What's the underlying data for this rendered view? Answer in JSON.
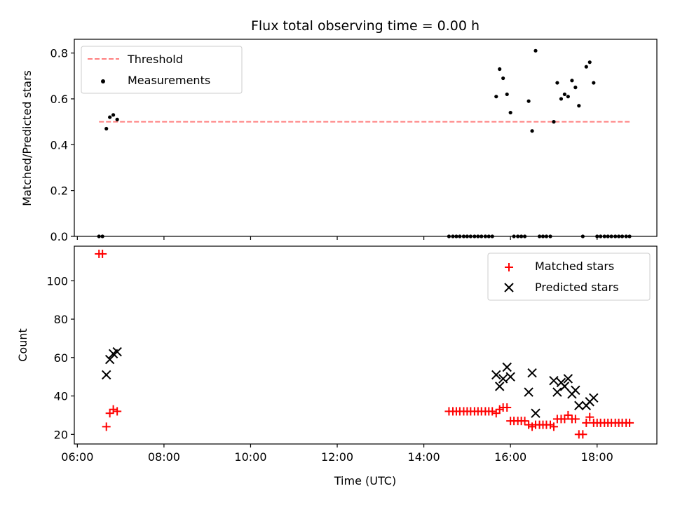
{
  "chart_data": [
    {
      "type": "scatter",
      "title": "Flux total observing time = 0.00 h",
      "xlabel": "",
      "ylabel": "Matched/Predicted stars",
      "xlim": [
        5.93,
        19.38
      ],
      "ylim": [
        0,
        0.86
      ],
      "yticks": [
        0,
        0.2,
        0.4,
        0.6,
        0.8
      ],
      "ytick_labels": [
        "0.0",
        "0.2",
        "0.4",
        "0.6",
        "0.8"
      ],
      "xticks": [
        6,
        8,
        10,
        12,
        14,
        16,
        18
      ],
      "show_xtick_labels": false,
      "grid": false,
      "legend_position": "top-left",
      "threshold": {
        "name": "Threshold",
        "x_range": [
          6.5,
          18.75
        ],
        "value": 0.5,
        "color": "#ff7f7f",
        "style": "dashed"
      },
      "series": [
        {
          "name": "Measurements",
          "color": "#000000",
          "marker": "dot",
          "x": [
            6.5,
            6.58,
            6.67,
            6.75,
            6.83,
            6.92,
            14.58,
            14.67,
            14.75,
            14.83,
            14.92,
            15.0,
            15.08,
            15.17,
            15.25,
            15.33,
            15.42,
            15.5,
            15.58,
            15.67,
            15.75,
            15.83,
            15.92,
            16.0,
            16.08,
            16.17,
            16.25,
            16.33,
            16.42,
            16.5,
            16.58,
            16.67,
            16.75,
            16.83,
            16.92,
            17.0,
            17.08,
            17.17,
            17.25,
            17.33,
            17.42,
            17.5,
            17.58,
            17.67,
            17.75,
            17.83,
            17.92,
            18.0,
            18.08,
            18.17,
            18.25,
            18.33,
            18.42,
            18.5,
            18.58,
            18.67,
            18.75
          ],
          "y": [
            0,
            0,
            0.47,
            0.52,
            0.53,
            0.51,
            0,
            0,
            0,
            0,
            0,
            0,
            0,
            0,
            0,
            0,
            0,
            0,
            0,
            0.61,
            0.73,
            0.69,
            0.62,
            0.54,
            0,
            0,
            0,
            0,
            0.59,
            0.46,
            0.81,
            0,
            0,
            0,
            0,
            0.5,
            0.67,
            0.6,
            0.62,
            0.61,
            0.68,
            0.65,
            0.57,
            0,
            0.74,
            0.76,
            0.67,
            0,
            0,
            0,
            0,
            0,
            0,
            0,
            0,
            0,
            0
          ]
        }
      ]
    },
    {
      "type": "scatter",
      "title": "",
      "xlabel": "Time (UTC)",
      "ylabel": "Count",
      "xlim": [
        5.93,
        19.38
      ],
      "ylim": [
        15,
        118
      ],
      "yticks": [
        20,
        40,
        60,
        80,
        100
      ],
      "ytick_labels": [
        "20",
        "40",
        "60",
        "80",
        "100"
      ],
      "xticks": [
        6,
        8,
        10,
        12,
        14,
        16,
        18
      ],
      "xtick_labels": [
        "06:00",
        "08:00",
        "10:00",
        "12:00",
        "14:00",
        "16:00",
        "18:00"
      ],
      "grid": false,
      "legend_position": "top-right",
      "series": [
        {
          "name": "Matched stars",
          "color": "#ff0000",
          "marker": "plus",
          "x": [
            6.5,
            6.58,
            6.67,
            6.75,
            6.83,
            6.92,
            14.58,
            14.67,
            14.75,
            14.83,
            14.92,
            15.0,
            15.08,
            15.17,
            15.25,
            15.33,
            15.42,
            15.5,
            15.58,
            15.67,
            15.75,
            15.83,
            15.92,
            16.0,
            16.08,
            16.17,
            16.25,
            16.33,
            16.42,
            16.5,
            16.58,
            16.67,
            16.75,
            16.83,
            16.92,
            17.0,
            17.08,
            17.17,
            17.25,
            17.33,
            17.42,
            17.5,
            17.58,
            17.67,
            17.75,
            17.83,
            17.92,
            18.0,
            18.08,
            18.17,
            18.25,
            18.33,
            18.42,
            18.5,
            18.58,
            18.67,
            18.75
          ],
          "y": [
            114,
            114,
            24,
            31,
            33,
            32,
            32,
            32,
            32,
            32,
            32,
            32,
            32,
            32,
            32,
            32,
            32,
            32,
            32,
            31,
            33,
            34,
            34,
            27,
            27,
            27,
            27,
            27,
            25,
            24,
            25,
            25,
            25,
            25,
            25,
            24,
            28,
            28,
            28,
            30,
            28,
            28,
            20,
            20,
            26,
            29,
            26,
            26,
            26,
            26,
            26,
            26,
            26,
            26,
            26,
            26,
            26
          ]
        },
        {
          "name": "Predicted stars",
          "color": "#000000",
          "marker": "x",
          "x": [
            6.67,
            6.75,
            6.83,
            6.92,
            15.67,
            15.75,
            15.83,
            15.92,
            16.0,
            16.42,
            16.5,
            16.58,
            17.0,
            17.08,
            17.17,
            17.25,
            17.33,
            17.42,
            17.5,
            17.58,
            17.75,
            17.83,
            17.92
          ],
          "y": [
            51,
            59,
            62,
            63,
            51,
            45,
            49,
            55,
            50,
            42,
            52,
            31,
            48,
            42,
            47,
            45,
            49,
            41,
            43,
            35,
            35,
            37,
            39
          ]
        }
      ]
    }
  ]
}
